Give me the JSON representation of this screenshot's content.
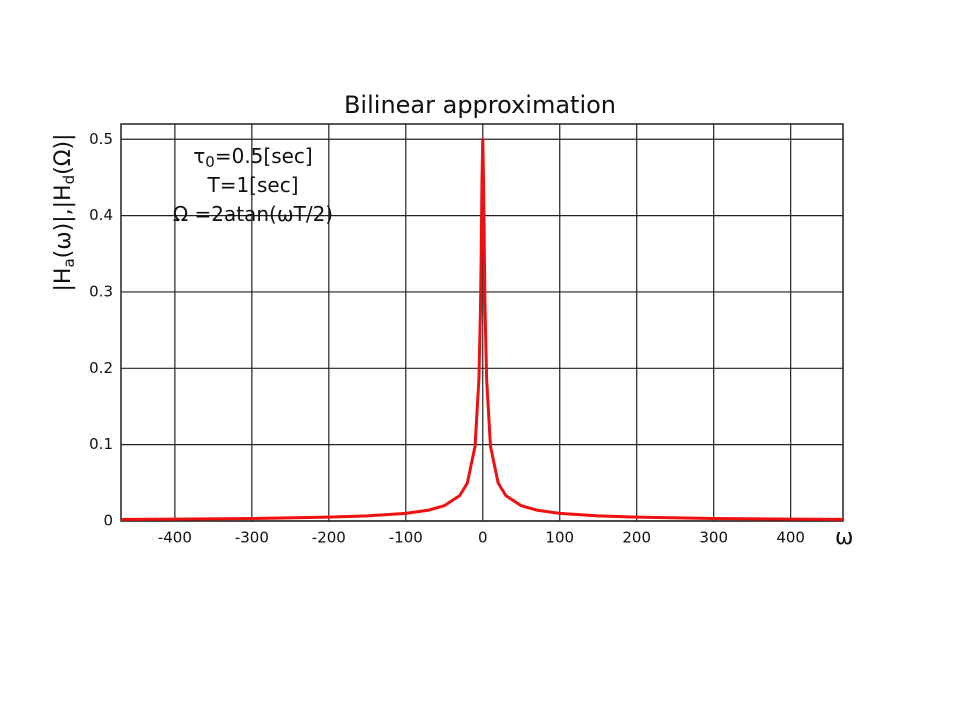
{
  "chart_data": {
    "type": "line",
    "title": "Bilinear approximation",
    "ylabel_parts": [
      "|H",
      "a",
      "(ω)|,|H",
      "d",
      "(Ω)|"
    ],
    "xlabel": "ω",
    "annotation_parts": [
      [
        "τ",
        "0",
        "=0.5[sec]"
      ],
      [
        "T=1[sec]"
      ],
      [
        "Ω =2atan(ωT/2)"
      ]
    ],
    "x": [
      -470,
      -400,
      -300,
      -200,
      -150,
      -100,
      -70,
      -50,
      -30,
      -20,
      -10,
      -5,
      -3,
      -2,
      -1,
      0,
      1,
      2,
      3,
      5,
      10,
      20,
      30,
      50,
      70,
      100,
      150,
      200,
      300,
      400,
      468
    ],
    "series": [
      {
        "color": "#ee1111",
        "values": [
          0.0021,
          0.0025,
          0.0033,
          0.005,
          0.0067,
          0.01,
          0.0143,
          0.02,
          0.0332,
          0.0498,
          0.098,
          0.186,
          0.277,
          0.354,
          0.447,
          0.5,
          0.447,
          0.354,
          0.277,
          0.186,
          0.098,
          0.0498,
          0.0332,
          0.02,
          0.0143,
          0.01,
          0.0067,
          0.005,
          0.0033,
          0.0025,
          0.0021
        ]
      }
    ],
    "xlim": [
      -470,
      468
    ],
    "ylim": [
      0,
      0.52
    ],
    "xticks": [
      -400,
      -300,
      -200,
      -100,
      0,
      100,
      200,
      300,
      400
    ],
    "yticks": [
      0,
      0.1,
      0.2,
      0.3,
      0.4,
      0.5
    ],
    "grid": true
  }
}
